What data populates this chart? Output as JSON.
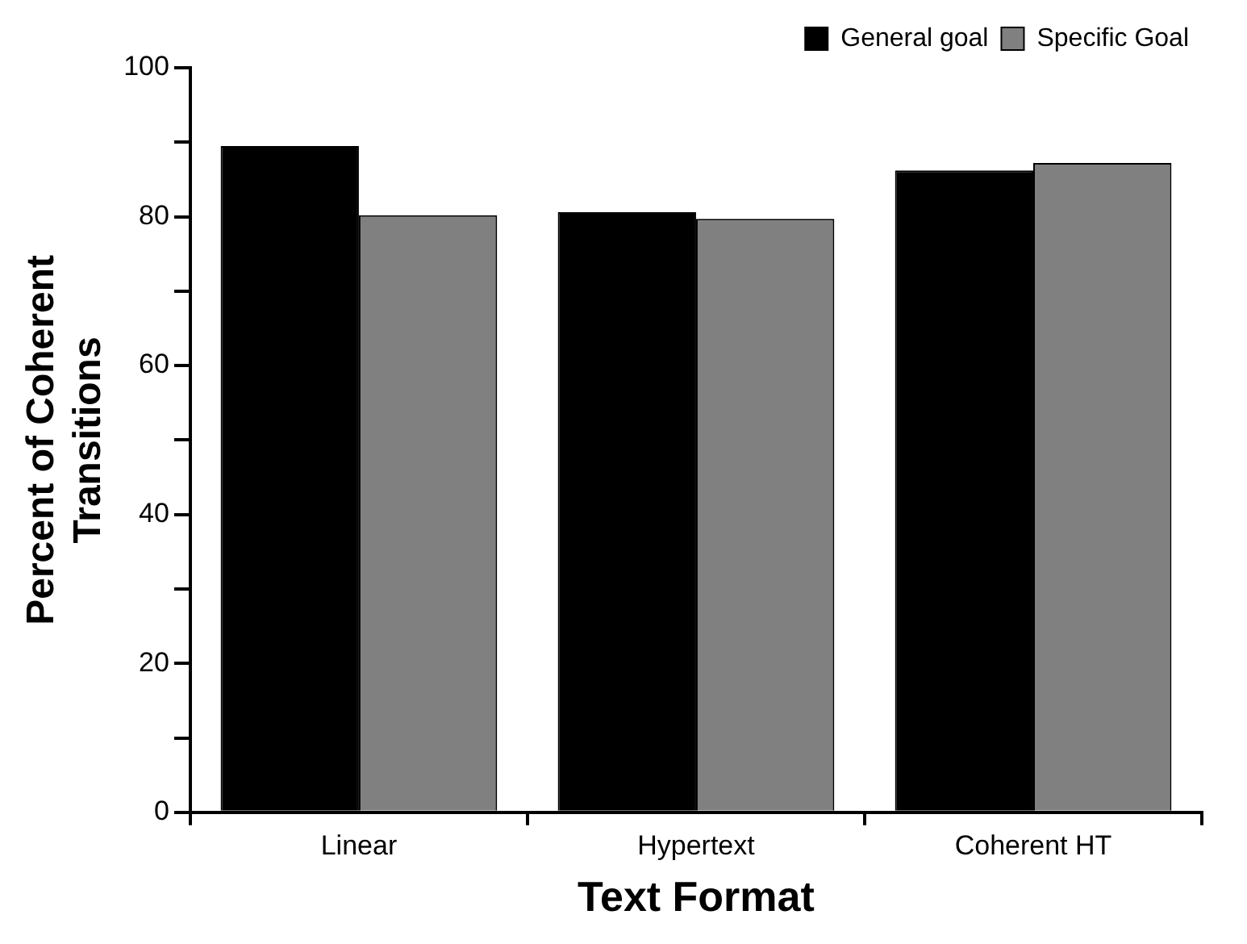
{
  "chart_data": {
    "type": "bar",
    "xlabel": "Text Format",
    "ylabel": "Percent of Coherent\nTransitions",
    "categories": [
      "Linear",
      "Hypertext",
      "Coherent HT"
    ],
    "series": [
      {
        "name": "General goal",
        "color": "#000000",
        "values": [
          89.5,
          80.6,
          86.2
        ]
      },
      {
        "name": "Specific Goal",
        "color": "#808080",
        "values": [
          80.2,
          79.7,
          87.2
        ]
      }
    ],
    "ylim": [
      0,
      100
    ],
    "yticks": [
      0,
      {
        "value": 10,
        "label": null
      },
      20,
      {
        "value": 30,
        "label": null
      },
      40,
      {
        "value": 50,
        "label": null
      },
      60,
      {
        "value": 70,
        "label": null
      },
      80,
      {
        "value": 90,
        "label": null
      },
      100
    ],
    "grid": false,
    "legend": "top right"
  }
}
